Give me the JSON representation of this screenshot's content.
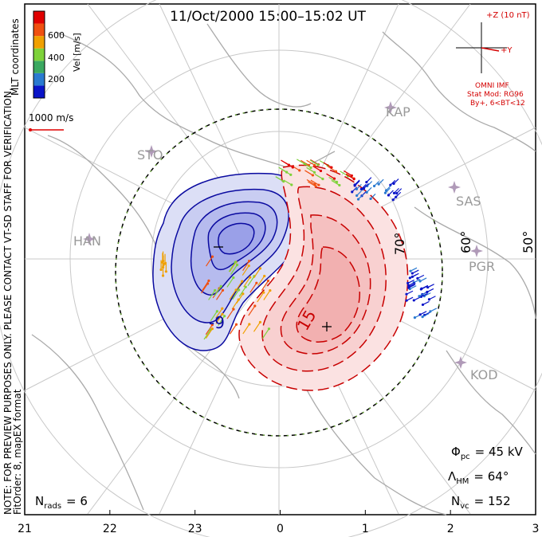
{
  "title": "11/Oct/2000 15:00–15:02 UT",
  "side_note": {
    "line1": "NOTE: FOR PREVIEW PURPOSES ONLY. PLEASE CONTACT VT-SD STAFF FOR VERIFICATION.",
    "line2": "FitOrder: 8, mapEX format"
  },
  "coords_label": "MLT coordinates",
  "colorbar": {
    "unit_label": "Vel [m/s]",
    "ticks": [
      "600",
      "400",
      "200"
    ],
    "colors": [
      "#0a14c8",
      "#2a7ad0",
      "#3aa860",
      "#7ed23a",
      "#f0a000",
      "#f05010",
      "#e00000"
    ]
  },
  "scale_label": "1000 m/s",
  "imf": {
    "z_label": "+Z (10 nT)",
    "y_label": "+Y",
    "source": "OMNI IMF",
    "model_line1": "Stat Mod: RG96",
    "model_line2": "By+, 6<BT<12"
  },
  "stations": [
    "KAP",
    "STO",
    "SAS",
    "HAN",
    "PGR",
    "KOD"
  ],
  "latitude_labels": [
    "70°",
    "60°",
    "50°"
  ],
  "contour_labels": {
    "negative": "-9",
    "positive": "15"
  },
  "mlt_ticks": [
    "21",
    "22",
    "23",
    "0",
    "1",
    "2",
    "3"
  ],
  "stats": {
    "phi_pc": "Φ",
    "phi_pc_sub": "pc",
    "phi_pc_value": "= 45 kV",
    "lambda_hm": "Λ",
    "lambda_hm_sub": "HM",
    "lambda_hm_value": "= 64°",
    "n_vc": "N",
    "n_vc_sub": "vc",
    "n_vc_value": "= 152",
    "n_rads": "N",
    "n_rads_sub": "rads",
    "n_rads_value": "= 6"
  },
  "colors": {
    "negative_fill": "#9aa0e8",
    "positive_fill": "#f4b0b0",
    "negative_line": "#0a0aa0",
    "positive_line": "#c80000",
    "coastline": "#aaaaaa",
    "grid": "#c8c8c8",
    "station": "#b09ab8"
  }
}
